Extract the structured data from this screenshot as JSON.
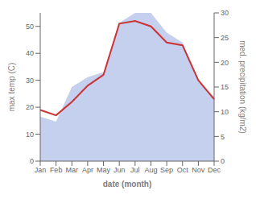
{
  "chart_data": {
    "type": "line",
    "xlabel": "date (month)",
    "ylabel": "max temp (C)",
    "y2label": "med. precipitation (kg/m2)",
    "categories": [
      "Jan",
      "Feb",
      "Mar",
      "Apr",
      "May",
      "Jun",
      "Jul",
      "Aug",
      "Sep",
      "Oct",
      "Nov",
      "Dec"
    ],
    "series": [
      {
        "type": "area",
        "axis": "y2",
        "color": "#c5cfee",
        "values": [
          9,
          8,
          15,
          17,
          18,
          28,
          30,
          30,
          26,
          24,
          16,
          13
        ]
      },
      {
        "type": "line",
        "color": "#cc3333",
        "values": [
          19,
          17,
          22,
          28,
          32,
          51,
          52,
          50,
          44,
          43,
          30,
          23
        ]
      }
    ],
    "ylim": [
      0,
      55
    ],
    "yticks": [
      0,
      10,
      20,
      30,
      40,
      50
    ],
    "y2lim": [
      0,
      30
    ],
    "y2ticks": [
      0,
      5,
      10,
      15,
      20,
      25,
      30
    ]
  }
}
